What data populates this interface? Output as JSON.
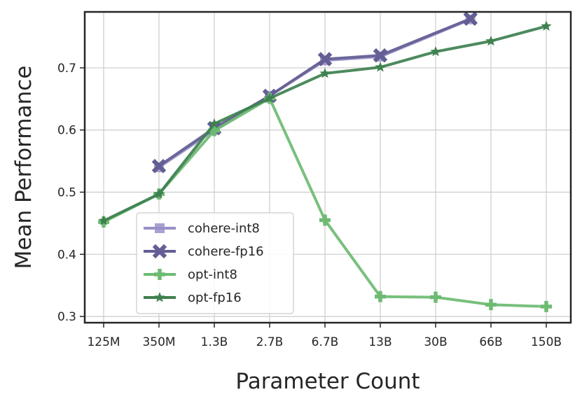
{
  "chart_data": {
    "type": "line",
    "xlabel": "Parameter Count",
    "ylabel": "Mean Performance",
    "categories": [
      "125M",
      "350M",
      "1.3B",
      "2.7B",
      "6.7B",
      "13B",
      "30B",
      "66B",
      "150B"
    ],
    "ylim": [
      0.29,
      0.79
    ],
    "yticks": [
      "0.3",
      "0.4",
      "0.5",
      "0.6",
      "0.7"
    ],
    "grid": true,
    "legend_position": "lower-left",
    "series": [
      {
        "name": "cohere-int8",
        "marker": "square",
        "color": "#9a90c8",
        "points": [
          [
            1,
            0.54
          ],
          [
            2,
            0.6
          ],
          [
            3,
            0.655
          ],
          [
            4,
            0.712
          ],
          [
            5,
            0.718
          ],
          [
            6.63,
            0.778
          ]
        ]
      },
      {
        "name": "cohere-fp16",
        "marker": "x",
        "color": "#635e93",
        "points": [
          [
            1,
            0.542
          ],
          [
            2,
            0.603
          ],
          [
            3,
            0.655
          ],
          [
            4,
            0.714
          ],
          [
            5,
            0.72
          ],
          [
            6.63,
            0.779
          ]
        ]
      },
      {
        "name": "opt-int8",
        "marker": "plus",
        "color": "#6dbb72",
        "points": [
          [
            0,
            0.452
          ],
          [
            1,
            0.497
          ],
          [
            2,
            0.599
          ],
          [
            3,
            0.651
          ],
          [
            4,
            0.455
          ],
          [
            5,
            0.332
          ],
          [
            6,
            0.331
          ],
          [
            7,
            0.319
          ],
          [
            8,
            0.316
          ]
        ]
      },
      {
        "name": "opt-fp16",
        "marker": "star",
        "color": "#3e8050",
        "points": [
          [
            0,
            0.454
          ],
          [
            1,
            0.497
          ],
          [
            2,
            0.61
          ],
          [
            3,
            0.651
          ],
          [
            4,
            0.691
          ],
          [
            5,
            0.701
          ],
          [
            6,
            0.726
          ],
          [
            7,
            0.743
          ],
          [
            8,
            0.767
          ]
        ]
      }
    ]
  }
}
